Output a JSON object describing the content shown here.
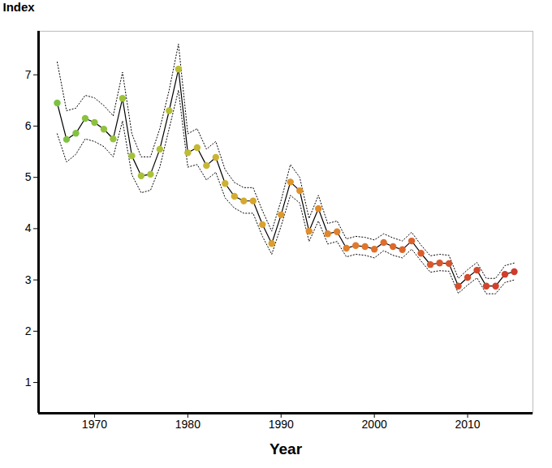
{
  "chart_data": {
    "type": "line",
    "x_label": "Year",
    "y_label": "Index",
    "x": [
      1966,
      1967,
      1968,
      1969,
      1970,
      1971,
      1972,
      1973,
      1974,
      1975,
      1976,
      1977,
      1978,
      1979,
      1980,
      1981,
      1982,
      1983,
      1984,
      1985,
      1986,
      1987,
      1988,
      1989,
      1990,
      1991,
      1992,
      1993,
      1994,
      1995,
      1996,
      1997,
      1998,
      1999,
      2000,
      2001,
      2002,
      2003,
      2004,
      2005,
      2006,
      2007,
      2008,
      2009,
      2010,
      2011,
      2012,
      2013,
      2014,
      2015
    ],
    "values": [
      6.45,
      5.74,
      5.86,
      6.15,
      6.07,
      5.94,
      5.75,
      6.54,
      5.42,
      5.03,
      5.06,
      5.55,
      6.3,
      7.11,
      5.48,
      5.58,
      5.23,
      5.39,
      4.88,
      4.63,
      4.54,
      4.54,
      4.08,
      3.71,
      4.27,
      4.91,
      4.74,
      3.95,
      4.39,
      3.9,
      3.94,
      3.62,
      3.67,
      3.65,
      3.6,
      3.73,
      3.65,
      3.59,
      3.76,
      3.52,
      3.3,
      3.33,
      3.32,
      2.88,
      3.05,
      3.19,
      2.88,
      2.88,
      3.11,
      3.16
    ],
    "lower": [
      5.85,
      5.3,
      5.45,
      5.75,
      5.7,
      5.6,
      5.4,
      6.1,
      5.05,
      4.7,
      4.75,
      5.2,
      5.95,
      6.7,
      5.2,
      5.25,
      4.95,
      5.1,
      4.6,
      4.4,
      4.3,
      4.3,
      3.85,
      3.5,
      4.05,
      4.65,
      4.5,
      3.75,
      4.15,
      3.7,
      3.75,
      3.45,
      3.5,
      3.48,
      3.43,
      3.57,
      3.48,
      3.43,
      3.6,
      3.37,
      3.15,
      3.18,
      3.17,
      2.74,
      2.9,
      3.04,
      2.73,
      2.73,
      2.95,
      3.0
    ],
    "upper": [
      7.25,
      6.3,
      6.35,
      6.6,
      6.55,
      6.4,
      6.2,
      7.05,
      5.85,
      5.4,
      5.4,
      5.95,
      6.7,
      7.6,
      5.85,
      5.95,
      5.55,
      5.7,
      5.15,
      4.9,
      4.8,
      4.8,
      4.35,
      3.95,
      4.55,
      5.25,
      5.0,
      4.2,
      4.65,
      4.1,
      4.15,
      3.8,
      3.85,
      3.83,
      3.78,
      3.9,
      3.82,
      3.76,
      3.93,
      3.68,
      3.47,
      3.5,
      3.48,
      3.03,
      3.2,
      3.34,
      3.03,
      3.03,
      3.28,
      3.33
    ],
    "color": "#000000",
    "colors": [
      "#7cc242",
      "#7fc241",
      "#83c240",
      "#88c23f",
      "#8dc23e",
      "#92c23d",
      "#97c23c",
      "#9cc23b",
      "#a2c23a",
      "#a7c139",
      "#acc038",
      "#b1bf37",
      "#b6be36",
      "#bbbd35",
      "#c0bb34",
      "#c4b933",
      "#c8b732",
      "#cbb431",
      "#ceb130",
      "#d1ae2f",
      "#d4aa2e",
      "#d6a62d",
      "#d8a22d",
      "#da9e2c",
      "#dc9a2c",
      "#dd962c",
      "#de922c",
      "#df8e2c",
      "#e08a2c",
      "#e0862c",
      "#e0822c",
      "#e07e2c",
      "#e07a2c",
      "#df762c",
      "#de722c",
      "#dd6e2c",
      "#dc6a2c",
      "#db662c",
      "#da622c",
      "#d95e2c",
      "#d85a2c",
      "#d7562c",
      "#d6522c",
      "#d54e2c",
      "#d44a2c",
      "#d3472c",
      "#d2442c",
      "#d1412c",
      "#d03e2c",
      "#cf3b2c"
    ],
    "marker": "circle",
    "xlim": [
      1964,
      2017
    ],
    "ylim": [
      0.4,
      7.85
    ],
    "xticks": [
      1970,
      1980,
      1990,
      2000,
      2010
    ],
    "yticks": [
      1,
      2,
      3,
      4,
      5,
      6,
      7
    ],
    "grid": false
  }
}
